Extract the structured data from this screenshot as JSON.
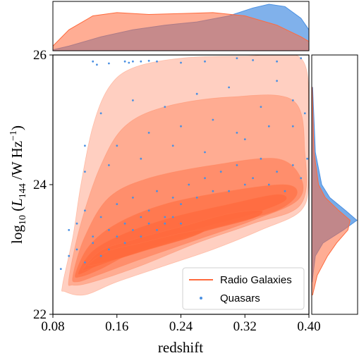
{
  "chart_data": {
    "type": "scatter",
    "xlabel": "redshift",
    "ylabel": "log10 (L144 /W Hz−1)",
    "ylabel_parts": {
      "prefix": "log",
      "sub1": "10",
      "open": " (",
      "L": "L",
      "sub2": "144",
      "unit": " /W Hz",
      "sup": "−1",
      "close": ")"
    },
    "x_ticks": [
      "0.08",
      "0.16",
      "0.24",
      "0.32",
      "0.40"
    ],
    "y_ticks": [
      "22",
      "24",
      "26"
    ],
    "xlim": [
      0.08,
      0.4
    ],
    "ylim": [
      22,
      26
    ],
    "legend": {
      "location": "lower right",
      "entries": [
        "Radio Galaxies",
        "Quasars"
      ]
    },
    "series": [
      {
        "name": "Radio Galaxies",
        "kind": "kde-contour",
        "color": "#ff6a3d",
        "density_peak": {
          "x": 0.14,
          "y": 23.0
        },
        "ridge": [
          [
            0.1,
            22.75
          ],
          [
            0.14,
            22.95
          ],
          [
            0.18,
            23.1
          ],
          [
            0.22,
            23.3
          ],
          [
            0.26,
            23.45
          ],
          [
            0.3,
            23.6
          ],
          [
            0.34,
            23.75
          ],
          [
            0.38,
            23.9
          ]
        ]
      },
      {
        "name": "Quasars",
        "kind": "points",
        "color": "#4a90e2",
        "points": [
          [
            0.13,
            25.9
          ],
          [
            0.135,
            25.85
          ],
          [
            0.15,
            25.87
          ],
          [
            0.17,
            25.9
          ],
          [
            0.175,
            25.88
          ],
          [
            0.18,
            25.9
          ],
          [
            0.19,
            25.9
          ],
          [
            0.2,
            25.91
          ],
          [
            0.21,
            25.9
          ],
          [
            0.24,
            25.88
          ],
          [
            0.27,
            25.9
          ],
          [
            0.31,
            25.95
          ],
          [
            0.33,
            25.92
          ],
          [
            0.36,
            25.9
          ],
          [
            0.39,
            25.95
          ],
          [
            0.12,
            24.2
          ],
          [
            0.14,
            25.1
          ],
          [
            0.16,
            24.6
          ],
          [
            0.18,
            25.3
          ],
          [
            0.2,
            24.8
          ],
          [
            0.22,
            25.2
          ],
          [
            0.24,
            24.9
          ],
          [
            0.26,
            25.4
          ],
          [
            0.28,
            25.0
          ],
          [
            0.3,
            25.5
          ],
          [
            0.32,
            24.7
          ],
          [
            0.34,
            25.2
          ],
          [
            0.36,
            25.6
          ],
          [
            0.38,
            24.9
          ],
          [
            0.395,
            25.1
          ],
          [
            0.11,
            23.4
          ],
          [
            0.12,
            23.6
          ],
          [
            0.13,
            23.2
          ],
          [
            0.14,
            23.5
          ],
          [
            0.15,
            23.3
          ],
          [
            0.16,
            23.7
          ],
          [
            0.17,
            23.4
          ],
          [
            0.18,
            23.8
          ],
          [
            0.19,
            23.5
          ],
          [
            0.2,
            23.6
          ],
          [
            0.21,
            23.9
          ],
          [
            0.22,
            23.5
          ],
          [
            0.23,
            23.8
          ],
          [
            0.24,
            23.7
          ],
          [
            0.25,
            24.0
          ],
          [
            0.26,
            23.8
          ],
          [
            0.27,
            24.1
          ],
          [
            0.28,
            23.9
          ],
          [
            0.29,
            24.2
          ],
          [
            0.3,
            23.9
          ],
          [
            0.31,
            24.3
          ],
          [
            0.32,
            24.0
          ],
          [
            0.33,
            24.1
          ],
          [
            0.34,
            24.4
          ],
          [
            0.35,
            24.0
          ],
          [
            0.36,
            24.2
          ],
          [
            0.37,
            23.9
          ],
          [
            0.38,
            24.3
          ],
          [
            0.39,
            24.1
          ],
          [
            0.398,
            24.4
          ],
          [
            0.1,
            22.9
          ],
          [
            0.11,
            23.0
          ],
          [
            0.12,
            22.8
          ],
          [
            0.13,
            23.1
          ],
          [
            0.14,
            22.9
          ],
          [
            0.15,
            23.0
          ],
          [
            0.16,
            23.2
          ],
          [
            0.17,
            23.1
          ],
          [
            0.18,
            23.3
          ],
          [
            0.19,
            23.2
          ],
          [
            0.2,
            23.4
          ],
          [
            0.21,
            23.3
          ],
          [
            0.22,
            23.4
          ],
          [
            0.23,
            23.5
          ],
          [
            0.24,
            23.4
          ],
          [
            0.09,
            22.7
          ],
          [
            0.1,
            23.3
          ],
          [
            0.12,
            24.6
          ],
          [
            0.15,
            24.3
          ],
          [
            0.19,
            24.4
          ],
          [
            0.23,
            24.6
          ],
          [
            0.27,
            24.5
          ],
          [
            0.31,
            24.8
          ],
          [
            0.35,
            24.9
          ],
          [
            0.38,
            25.3
          ]
        ]
      }
    ],
    "marginals": {
      "top": {
        "variable": "redshift",
        "series": [
          "Radio Galaxies",
          "Quasars"
        ],
        "quasar_peak_x": 0.35
      },
      "right": {
        "variable": "log10 L144",
        "series": [
          "Radio Galaxies",
          "Quasars"
        ],
        "quasar_peak_y": 23.45
      }
    },
    "colors": {
      "radio": "#ff6a3d",
      "quasar": "#4a90e2"
    }
  }
}
